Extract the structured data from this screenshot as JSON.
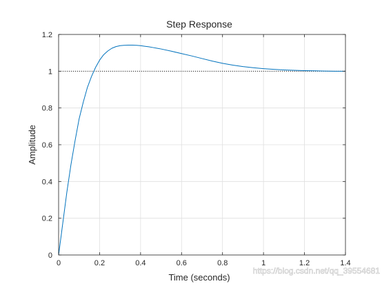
{
  "chart_data": {
    "type": "line",
    "title": "Step Response",
    "xlabel": "Time (seconds)",
    "ylabel": "Amplitude",
    "xlim": [
      0,
      1.4
    ],
    "ylim": [
      0,
      1.2
    ],
    "xticks": [
      "0",
      "0.2",
      "0.4",
      "0.6",
      "0.8",
      "1",
      "1.2",
      "1.4"
    ],
    "yticks": [
      "0",
      "0.2",
      "0.4",
      "0.6",
      "0.8",
      "1",
      "1.2"
    ],
    "grid": true,
    "reference_line": {
      "y": 1,
      "style": "dotted",
      "color": "#000000"
    },
    "series": [
      {
        "color": "#0072bd",
        "x": [
          0,
          0.02,
          0.04,
          0.06,
          0.08,
          0.1,
          0.12,
          0.14,
          0.16,
          0.18,
          0.2,
          0.22,
          0.24,
          0.26,
          0.28,
          0.3,
          0.32,
          0.34,
          0.36,
          0.38,
          0.4,
          0.42,
          0.44,
          0.46,
          0.48,
          0.5,
          0.55,
          0.6,
          0.65,
          0.7,
          0.75,
          0.8,
          0.85,
          0.9,
          0.95,
          1.0,
          1.05,
          1.1,
          1.15,
          1.2,
          1.25,
          1.3,
          1.35,
          1.4
        ],
        "y": [
          0,
          0.17,
          0.34,
          0.49,
          0.62,
          0.74,
          0.83,
          0.91,
          0.97,
          1.02,
          1.06,
          1.09,
          1.11,
          1.125,
          1.134,
          1.139,
          1.141,
          1.142,
          1.142,
          1.141,
          1.139,
          1.136,
          1.133,
          1.129,
          1.125,
          1.121,
          1.109,
          1.096,
          1.083,
          1.069,
          1.055,
          1.043,
          1.033,
          1.025,
          1.019,
          1.014,
          1.01,
          1.007,
          1.005,
          1.003,
          1.002,
          1.001,
          1.0,
          1.0
        ]
      }
    ]
  },
  "watermark": "https://blog.csdn.net/qq_39554681"
}
